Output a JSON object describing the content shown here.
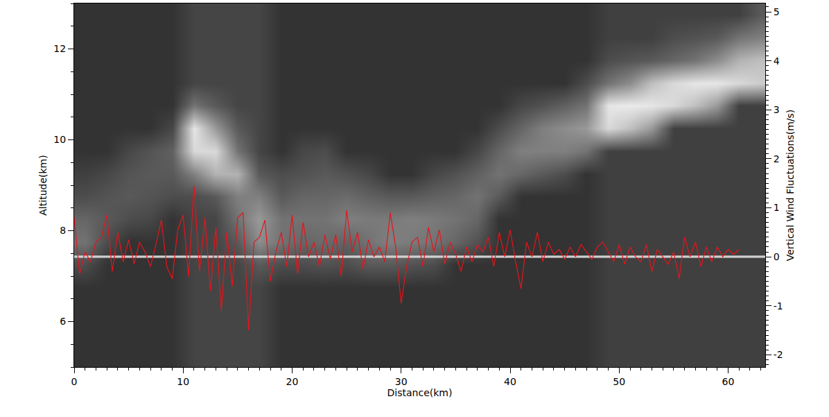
{
  "chart_data": {
    "type": "line",
    "x_label": "Distance(km)",
    "y_label": "Altitude(km)",
    "y2_label": "Vertical Wind Fluctuations(m/s)",
    "xlim": [
      0,
      63.4
    ],
    "xticks": [
      0,
      10,
      20,
      30,
      40,
      50,
      60
    ],
    "ylim": [
      5,
      13
    ],
    "yticks": [
      6,
      8,
      10,
      12
    ],
    "y2lim": [
      -2.25,
      5.17
    ],
    "y2ticks": [
      -2,
      -1,
      0,
      1,
      2,
      3,
      4,
      5
    ],
    "grid": false,
    "image": {
      "x": [
        1,
        3,
        5,
        7,
        9,
        11,
        13,
        15,
        17,
        19,
        21,
        23,
        25,
        27,
        29,
        31,
        33,
        35,
        37,
        39,
        41,
        43,
        45,
        47,
        49,
        51,
        53,
        55,
        57,
        59,
        61,
        63
      ],
      "y": [
        5.25,
        5.75,
        6.25,
        6.75,
        7.25,
        7.75,
        8.25,
        8.75,
        9.25,
        9.75,
        10.25,
        10.75,
        11.25,
        11.75,
        12.25,
        12.75
      ],
      "zlim": [
        0,
        1
      ],
      "z": [
        [
          0.2,
          0.2,
          0.2,
          0.2,
          0.2,
          0.27,
          0.27,
          0.27,
          0.27,
          0.2,
          0.2,
          0.2,
          0.2,
          0.2,
          0.2,
          0.2,
          0.2,
          0.2,
          0.2,
          0.2,
          0.2,
          0.2,
          0.2,
          0.2,
          0.25,
          0.25,
          0.25,
          0.25,
          0.25,
          0.25,
          0.25,
          0.25
        ],
        [
          0.2,
          0.2,
          0.2,
          0.2,
          0.2,
          0.27,
          0.27,
          0.27,
          0.27,
          0.2,
          0.2,
          0.2,
          0.2,
          0.2,
          0.2,
          0.2,
          0.2,
          0.2,
          0.2,
          0.2,
          0.2,
          0.2,
          0.2,
          0.2,
          0.25,
          0.25,
          0.25,
          0.25,
          0.25,
          0.25,
          0.25,
          0.25
        ],
        [
          0.2,
          0.2,
          0.2,
          0.2,
          0.2,
          0.27,
          0.27,
          0.27,
          0.27,
          0.2,
          0.2,
          0.2,
          0.2,
          0.2,
          0.2,
          0.2,
          0.2,
          0.2,
          0.2,
          0.2,
          0.2,
          0.2,
          0.2,
          0.2,
          0.25,
          0.25,
          0.25,
          0.25,
          0.25,
          0.25,
          0.25,
          0.25
        ],
        [
          0.2,
          0.2,
          0.2,
          0.2,
          0.2,
          0.27,
          0.27,
          0.27,
          0.27,
          0.2,
          0.2,
          0.2,
          0.2,
          0.2,
          0.2,
          0.2,
          0.2,
          0.2,
          0.2,
          0.2,
          0.2,
          0.2,
          0.2,
          0.2,
          0.25,
          0.25,
          0.25,
          0.25,
          0.25,
          0.25,
          0.25,
          0.25
        ],
        [
          0.3,
          0.2,
          0.2,
          0.2,
          0.2,
          0.27,
          0.27,
          0.27,
          0.35,
          0.3,
          0.3,
          0.32,
          0.3,
          0.35,
          0.35,
          0.32,
          0.3,
          0.2,
          0.2,
          0.2,
          0.2,
          0.2,
          0.2,
          0.2,
          0.25,
          0.25,
          0.25,
          0.25,
          0.25,
          0.25,
          0.25,
          0.25
        ],
        [
          0.45,
          0.3,
          0.2,
          0.2,
          0.2,
          0.27,
          0.27,
          0.35,
          0.55,
          0.45,
          0.4,
          0.42,
          0.38,
          0.45,
          0.5,
          0.48,
          0.45,
          0.4,
          0.32,
          0.2,
          0.2,
          0.2,
          0.2,
          0.2,
          0.25,
          0.25,
          0.25,
          0.25,
          0.25,
          0.25,
          0.25,
          0.25
        ],
        [
          0.4,
          0.35,
          0.3,
          0.28,
          0.2,
          0.27,
          0.27,
          0.45,
          0.6,
          0.45,
          0.45,
          0.45,
          0.5,
          0.48,
          0.48,
          0.5,
          0.48,
          0.45,
          0.4,
          0.2,
          0.2,
          0.2,
          0.2,
          0.2,
          0.25,
          0.25,
          0.25,
          0.25,
          0.25,
          0.25,
          0.25,
          0.25
        ],
        [
          0.3,
          0.33,
          0.35,
          0.33,
          0.3,
          0.3,
          0.35,
          0.5,
          0.5,
          0.35,
          0.4,
          0.4,
          0.42,
          0.38,
          0.35,
          0.35,
          0.38,
          0.4,
          0.45,
          0.35,
          0.2,
          0.2,
          0.2,
          0.2,
          0.25,
          0.25,
          0.25,
          0.25,
          0.25,
          0.25,
          0.25,
          0.25
        ],
        [
          0.25,
          0.28,
          0.33,
          0.35,
          0.35,
          0.5,
          0.7,
          0.7,
          0.35,
          0.3,
          0.32,
          0.35,
          0.32,
          0.28,
          0.2,
          0.2,
          0.28,
          0.32,
          0.38,
          0.45,
          0.4,
          0.35,
          0.3,
          0.2,
          0.25,
          0.25,
          0.25,
          0.25,
          0.25,
          0.25,
          0.25,
          0.25
        ],
        [
          0.2,
          0.2,
          0.28,
          0.33,
          0.38,
          0.85,
          0.85,
          0.45,
          0.27,
          0.2,
          0.28,
          0.3,
          0.2,
          0.2,
          0.2,
          0.2,
          0.2,
          0.2,
          0.28,
          0.4,
          0.5,
          0.5,
          0.5,
          0.45,
          0.25,
          0.25,
          0.25,
          0.25,
          0.25,
          0.25,
          0.25,
          0.25
        ],
        [
          0.2,
          0.2,
          0.2,
          0.2,
          0.28,
          0.9,
          0.6,
          0.35,
          0.27,
          0.2,
          0.2,
          0.2,
          0.2,
          0.2,
          0.2,
          0.2,
          0.2,
          0.2,
          0.2,
          0.3,
          0.4,
          0.5,
          0.55,
          0.6,
          0.85,
          0.75,
          0.6,
          0.25,
          0.25,
          0.25,
          0.25,
          0.25
        ],
        [
          0.2,
          0.2,
          0.2,
          0.2,
          0.2,
          0.45,
          0.35,
          0.27,
          0.27,
          0.2,
          0.2,
          0.2,
          0.2,
          0.2,
          0.2,
          0.2,
          0.2,
          0.2,
          0.2,
          0.2,
          0.28,
          0.32,
          0.38,
          0.45,
          0.9,
          0.92,
          0.9,
          0.85,
          0.75,
          0.6,
          0.25,
          0.25
        ],
        [
          0.2,
          0.2,
          0.2,
          0.2,
          0.2,
          0.27,
          0.27,
          0.27,
          0.27,
          0.2,
          0.2,
          0.2,
          0.2,
          0.2,
          0.2,
          0.2,
          0.2,
          0.2,
          0.2,
          0.2,
          0.2,
          0.2,
          0.2,
          0.3,
          0.45,
          0.55,
          0.75,
          0.85,
          0.9,
          0.9,
          0.85,
          0.8
        ],
        [
          0.2,
          0.2,
          0.2,
          0.2,
          0.2,
          0.27,
          0.27,
          0.27,
          0.27,
          0.2,
          0.2,
          0.2,
          0.2,
          0.2,
          0.2,
          0.2,
          0.2,
          0.2,
          0.2,
          0.2,
          0.2,
          0.2,
          0.2,
          0.2,
          0.3,
          0.33,
          0.35,
          0.4,
          0.45,
          0.55,
          0.7,
          0.75
        ],
        [
          0.2,
          0.2,
          0.2,
          0.2,
          0.2,
          0.27,
          0.27,
          0.27,
          0.27,
          0.2,
          0.2,
          0.2,
          0.2,
          0.2,
          0.2,
          0.2,
          0.2,
          0.2,
          0.2,
          0.2,
          0.2,
          0.2,
          0.2,
          0.2,
          0.25,
          0.25,
          0.25,
          0.3,
          0.32,
          0.35,
          0.45,
          0.5
        ],
        [
          0.2,
          0.2,
          0.2,
          0.2,
          0.2,
          0.27,
          0.27,
          0.27,
          0.27,
          0.2,
          0.2,
          0.2,
          0.2,
          0.2,
          0.2,
          0.2,
          0.2,
          0.2,
          0.2,
          0.2,
          0.2,
          0.2,
          0.2,
          0.2,
          0.25,
          0.25,
          0.25,
          0.25,
          0.25,
          0.25,
          0.25,
          0.35
        ]
      ]
    },
    "baseline": 0,
    "series": [
      {
        "color": "#e8141c",
        "axis": "y2",
        "x": [
          0,
          0.5,
          1,
          1.5,
          2,
          2.5,
          3,
          3.5,
          4,
          4.5,
          5,
          5.5,
          6,
          6.5,
          7,
          7.5,
          8,
          8.5,
          9,
          9.5,
          10,
          10.5,
          11,
          11.5,
          12,
          12.5,
          13,
          13.5,
          14,
          14.5,
          15,
          15.5,
          16,
          16.5,
          17,
          17.5,
          18,
          18.5,
          19,
          19.5,
          20,
          20.5,
          21,
          21.5,
          22,
          22.5,
          23,
          23.5,
          24,
          24.5,
          25,
          25.5,
          26,
          26.5,
          27,
          27.5,
          28,
          28.5,
          29,
          29.5,
          30,
          30.5,
          31,
          31.5,
          32,
          32.5,
          33,
          33.5,
          34,
          34.5,
          35,
          35.5,
          36,
          36.5,
          37,
          37.5,
          38,
          38.5,
          39,
          39.5,
          40,
          40.5,
          41,
          41.5,
          42,
          42.5,
          43,
          43.5,
          44,
          44.5,
          45,
          45.5,
          46,
          46.5,
          47,
          47.5,
          48,
          48.5,
          49,
          49.5,
          50,
          50.5,
          51,
          51.5,
          52,
          52.5,
          53,
          53.5,
          54,
          54.5,
          55,
          55.5,
          56,
          56.5,
          57,
          57.5,
          58,
          58.5,
          59,
          59.5,
          60,
          60.5,
          61
        ],
        "values": [
          0.8,
          -0.35,
          0.1,
          -0.1,
          0.3,
          0.4,
          0.85,
          -0.3,
          0.5,
          -0.1,
          0.35,
          -0.15,
          0.3,
          0.1,
          -0.2,
          0.25,
          0.75,
          -0.2,
          -0.45,
          0.55,
          0.85,
          -0.4,
          1.45,
          -0.3,
          0.8,
          -0.7,
          0.6,
          -1.1,
          0.5,
          -0.6,
          0.8,
          0.9,
          -1.5,
          0.3,
          0.4,
          0.75,
          -0.5,
          0.1,
          0.5,
          -0.2,
          0.85,
          -0.35,
          0.7,
          0.0,
          0.3,
          -0.2,
          0.45,
          -0.05,
          0.45,
          -0.4,
          0.95,
          0.1,
          0.5,
          -0.25,
          0.35,
          0.0,
          0.2,
          -0.1,
          0.9,
          0.2,
          -0.95,
          -0.2,
          0.3,
          0.4,
          -0.2,
          0.6,
          0.1,
          0.55,
          -0.15,
          0.3,
          0.05,
          -0.3,
          0.2,
          -0.1,
          0.25,
          0.1,
          0.4,
          -0.2,
          0.5,
          0.0,
          0.55,
          -0.1,
          -0.65,
          0.3,
          0.0,
          0.5,
          -0.1,
          0.3,
          0.05,
          0.15,
          -0.05,
          0.2,
          0.0,
          0.25,
          0.1,
          -0.05,
          0.2,
          0.3,
          0.1,
          -0.1,
          0.25,
          -0.15,
          0.2,
          0.0,
          -0.1,
          0.25,
          -0.3,
          0.15,
          0.0,
          -0.15,
          0.1,
          -0.45,
          0.4,
          0.0,
          0.3,
          -0.2,
          0.2,
          -0.1,
          0.2,
          0.0,
          0.15,
          0.05,
          0.15
        ]
      }
    ]
  }
}
